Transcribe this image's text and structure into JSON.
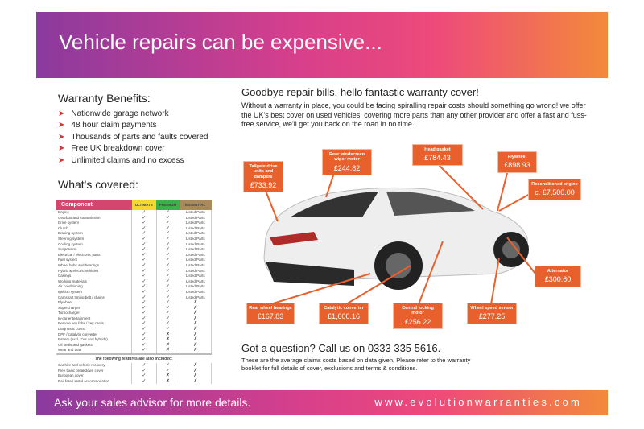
{
  "header": {
    "title": "Vehicle repairs can be expensive..."
  },
  "benefits": {
    "title": "Warranty Benefits:",
    "items": [
      "Nationwide garage network",
      "48 hour claim payments",
      "Thousands of parts and faults covered",
      "Free UK breakdown cover",
      "Unlimited claims and no excess"
    ]
  },
  "covered": {
    "title": "What's covered:",
    "columns": [
      "Component",
      "ULTIMATE",
      "PREMIUM",
      "ESSENTIAL"
    ],
    "rows": [
      [
        "Engine",
        "✓",
        "✓",
        "Listed Parts"
      ],
      [
        "Gearbox and transmission",
        "✓",
        "✓",
        "Listed Parts"
      ],
      [
        "Drive system",
        "✓",
        "✓",
        "Listed Parts"
      ],
      [
        "Clutch",
        "✓",
        "✓",
        "Listed Parts"
      ],
      [
        "Braking system",
        "✓",
        "✓",
        "Listed Parts"
      ],
      [
        "Steering system",
        "✓",
        "✓",
        "Listed Parts"
      ],
      [
        "Cooling system",
        "✓",
        "✓",
        "Listed Parts"
      ],
      [
        "Suspension",
        "✓",
        "✓",
        "Listed Parts"
      ],
      [
        "Electrical / electronic parts",
        "✓",
        "✓",
        "Listed Parts"
      ],
      [
        "Fuel system",
        "✓",
        "✓",
        "Listed Parts"
      ],
      [
        "Wheel hubs and bearings",
        "✓",
        "✓",
        "Listed Parts"
      ],
      [
        "Hybrid & electric vehicles",
        "✓",
        "✓",
        "Listed Parts"
      ],
      [
        "Casings",
        "✓",
        "✓",
        "Listed Parts"
      ],
      [
        "Working materials",
        "✓",
        "✓",
        "Listed Parts"
      ],
      [
        "Air conditioning",
        "✓",
        "✓",
        "Listed Parts"
      ],
      [
        "Ignition system",
        "✓",
        "✓",
        "Listed Parts"
      ],
      [
        "Camshaft timing belt / chains",
        "✓",
        "✓",
        "Listed Parts"
      ],
      [
        "Flywheel",
        "✓",
        "✓",
        "✗"
      ],
      [
        "Supercharger",
        "✓",
        "✓",
        "✗"
      ],
      [
        "Turbocharger",
        "✓",
        "✓",
        "✗"
      ],
      [
        "In-car entertainment",
        "✓",
        "✓",
        "✗"
      ],
      [
        "Remote key fobs / key cards",
        "✓",
        "✓",
        "✗"
      ],
      [
        "Diagnostic costs",
        "✓",
        "✓",
        "✗"
      ],
      [
        "DPF / catalytic converter",
        "✓",
        "✗",
        "✗"
      ],
      [
        "Battery (excl. EVs and hybrids)",
        "✓",
        "✗",
        "✗"
      ],
      [
        "Oil seals and gaskets",
        "✓",
        "✗",
        "✗"
      ],
      [
        "Wear and tear",
        "✓",
        "✗",
        "✗"
      ]
    ],
    "extras_title": "The following features are also included:",
    "extras": [
      [
        "Car hire and vehicle recovery",
        "✓",
        "✓",
        "✗"
      ],
      [
        "Free basic breakdown cover",
        "✓",
        "✓",
        "✗"
      ],
      [
        "European cover",
        "✓",
        "✗",
        "✗"
      ],
      [
        "Rail fare / Hotel accommodation",
        "✓",
        "✗",
        "✗"
      ]
    ]
  },
  "intro": {
    "title": "Goodbye repair bills, hello fantastic warranty cover!",
    "body": "Without a warranty in place, you could be facing spiralling repair costs should something go wrong! we offer the UK's best cover on used vehicles, covering more parts than any other provider and offer a fast and fuss-free service, we'll get you back on the road in no time."
  },
  "callouts": [
    {
      "label": "Tailgate drive units and dampers",
      "price": "£733.92"
    },
    {
      "label": "Rear windscreen wiper motor",
      "price": "£244.82"
    },
    {
      "label": "Head gasket",
      "price": "£784.43"
    },
    {
      "label": "Flywheel",
      "price": "£898.93"
    },
    {
      "label": "Reconditioned engine",
      "price": "c. £7,500.00"
    },
    {
      "label": "Alternator",
      "price": "£300.60"
    },
    {
      "label": "Rear wheel bearings",
      "price": "£167.83"
    },
    {
      "label": "Catalytic converter",
      "price": "£1,000.16"
    },
    {
      "label": "Central locking motor",
      "price": "£256.22"
    },
    {
      "label": "Wheel speed sensor",
      "price": "£277.25"
    }
  ],
  "contact": {
    "title": "Got a question? Call us on 0333 335 5616.",
    "body": "These are the average claims costs based on data given, Please refer to the warranty booklet for full details of cover, exclusions and terms & conditions."
  },
  "footer": {
    "advice": "Ask your sales advisor for more details.",
    "website": "www.evolutionwarranties.com"
  },
  "colors": {
    "accent": "#e8612c",
    "header_start": "#8b3a9e",
    "header_end": "#f38a3a"
  }
}
